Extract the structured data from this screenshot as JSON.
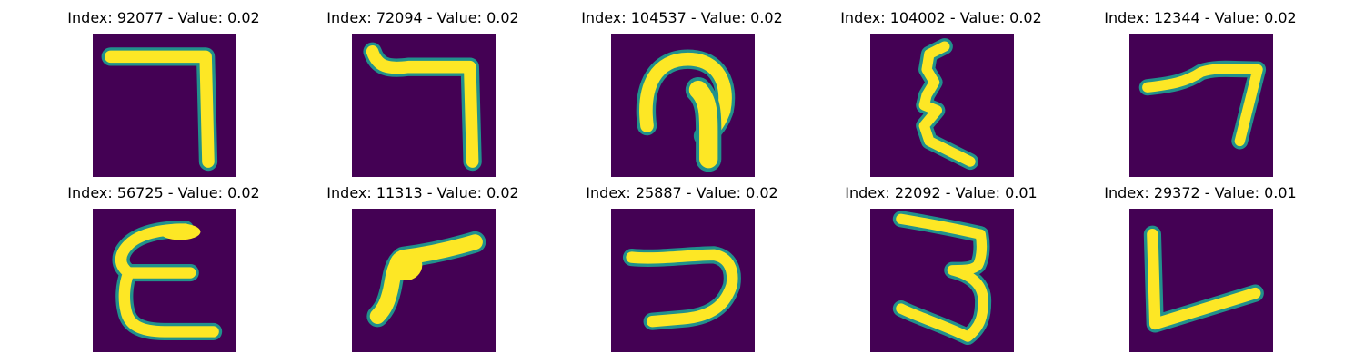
{
  "colors": {
    "background": "#440154",
    "stroke": "#fde725",
    "edge": "#21918c",
    "title": "#000000"
  },
  "panels": [
    {
      "title": "Index: 92077 - Value: 0.02",
      "glyph": "digit-7-corner"
    },
    {
      "title": "Index: 72094 - Value: 0.02",
      "glyph": "digit-7-hooked"
    },
    {
      "title": "Index: 104537 - Value: 0.02",
      "glyph": "loop-with-tail"
    },
    {
      "title": "Index: 104002 - Value: 0.02",
      "glyph": "zigzag-epsilon"
    },
    {
      "title": "Index: 12344 - Value: 0.02",
      "glyph": "digit-7-short"
    },
    {
      "title": "Index: 56725 - Value: 0.02",
      "glyph": "epsilon"
    },
    {
      "title": "Index: 11313 - Value: 0.02",
      "glyph": "digit-7-slanted"
    },
    {
      "title": "Index: 25887 - Value: 0.02",
      "glyph": "digit-7-curved"
    },
    {
      "title": "Index: 22092 - Value: 0.01",
      "glyph": "digit-3"
    },
    {
      "title": "Index: 29372 - Value: 0.01",
      "glyph": "letter-l-rotated"
    }
  ]
}
